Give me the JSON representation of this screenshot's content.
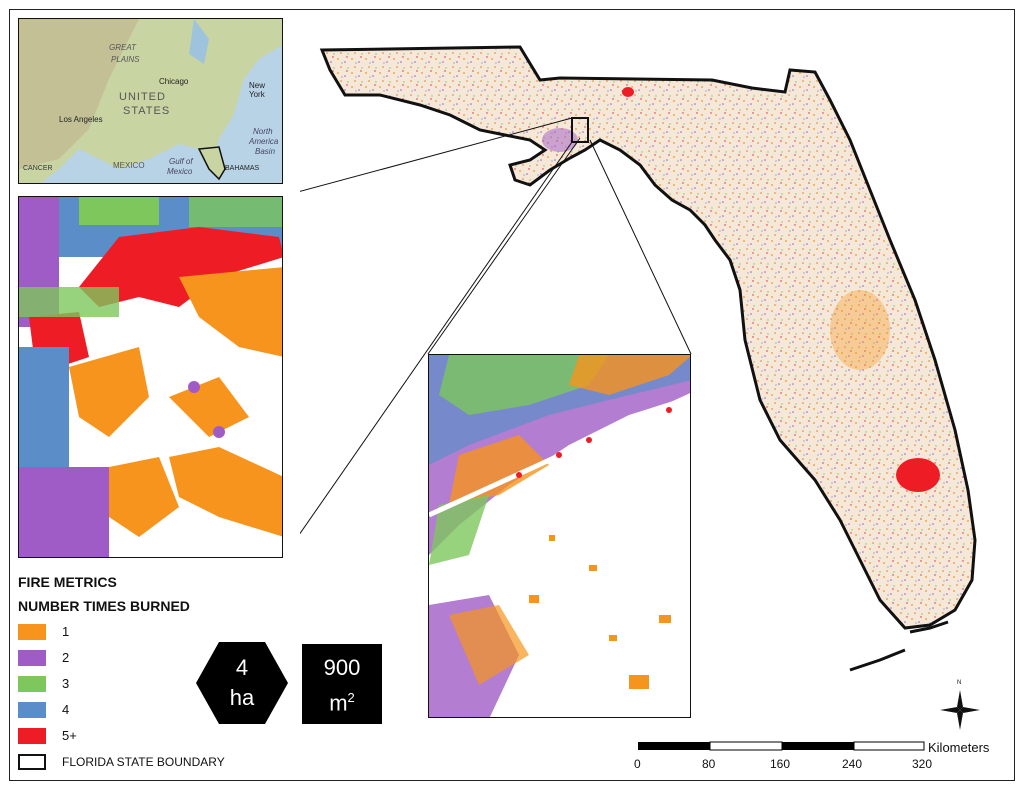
{
  "legend": {
    "title": "FIRE METRICS",
    "subtitle": "NUMBER TIMES BURNED",
    "items": [
      {
        "label": "1",
        "color": "#f7941d"
      },
      {
        "label": "2",
        "color": "#a05cc6"
      },
      {
        "label": "3",
        "color": "#7dc75c"
      },
      {
        "label": "4",
        "color": "#5b8ec9"
      },
      {
        "label": "5+",
        "color": "#ee1c25"
      }
    ],
    "boundary_label": "FLORIDA STATE BOUNDARY"
  },
  "resolution": {
    "hex_value": "4",
    "hex_unit": "ha",
    "pixel_value": "900",
    "pixel_unit": "m",
    "pixel_exp": "2"
  },
  "scale_bar": {
    "unit": "Kilometers",
    "ticks": [
      "0",
      "80",
      "160",
      "240",
      "320"
    ]
  },
  "locator_map": {
    "labels": [
      "GREAT",
      "PLAINS",
      "UNITED",
      "STATES",
      "Chicago",
      "New York",
      "Los Angeles",
      "MEXICO",
      "Gulf of",
      "Mexico",
      "North",
      "America",
      "Basin",
      "BAHAMAS",
      "CANCER"
    ],
    "land_color": "#c9d4a3",
    "water_color": "#b9d3e6"
  },
  "compass": {
    "label": "N"
  }
}
